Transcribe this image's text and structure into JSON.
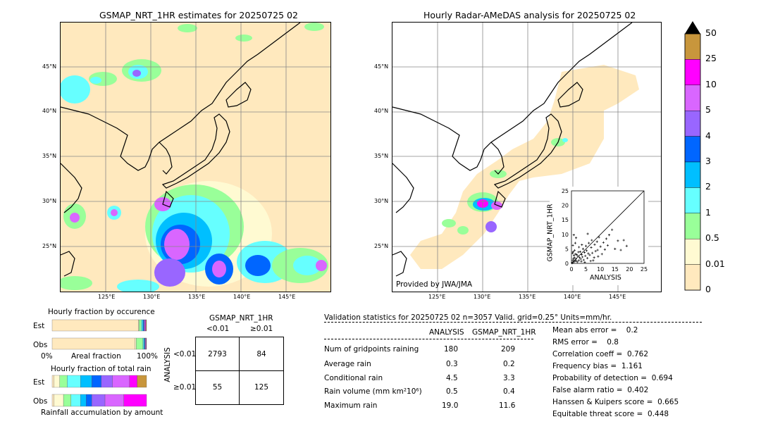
{
  "left_map": {
    "title": "GSMAP_NRT_1HR estimates for 20250725 02",
    "lat_labels": [
      "45°N",
      "40°N",
      "35°N",
      "30°N",
      "25°N"
    ],
    "lon_labels": [
      "125°E",
      "130°E",
      "135°E",
      "140°E",
      "145°E"
    ]
  },
  "right_map": {
    "title": "Hourly Radar-AMeDAS analysis for 20250725 02",
    "lat_labels": [
      "45°N",
      "40°N",
      "35°N",
      "30°N",
      "25°N"
    ],
    "lon_labels": [
      "125°E",
      "130°E",
      "135°E",
      "140°E",
      "145°E"
    ],
    "credit": "Provided by JWA/JMA"
  },
  "colorbar": {
    "labels": [
      "50",
      "25",
      "10",
      "5",
      "4",
      "3",
      "2",
      "1",
      "0.5",
      "0.01",
      "0"
    ],
    "colors": [
      "#c8963c",
      "#ff00ff",
      "#d966ff",
      "#9966ff",
      "#0066ff",
      "#00bfff",
      "#66ffff",
      "#99ff99",
      "#fffad2",
      "#ffe9be"
    ]
  },
  "chart_data": [
    {
      "type": "scatter",
      "xlabel": "ANALYSIS",
      "ylabel": "GSMAP_NRT_1HR",
      "xlim": [
        0,
        25
      ],
      "ylim": [
        0,
        25
      ],
      "xticks": [
        "0",
        "5",
        "10",
        "15",
        "20",
        "25"
      ],
      "yticks": [
        "0",
        "5",
        "10",
        "15",
        "20",
        "25"
      ],
      "points": [
        [
          0.3,
          0.2
        ],
        [
          0.5,
          1.0
        ],
        [
          0.8,
          0.5
        ],
        [
          1.0,
          2.0
        ],
        [
          1.2,
          0.8
        ],
        [
          1.5,
          1.5
        ],
        [
          1.8,
          3.0
        ],
        [
          2.0,
          0.5
        ],
        [
          2.2,
          2.5
        ],
        [
          2.5,
          1.0
        ],
        [
          0.4,
          3.5
        ],
        [
          0.6,
          4.0
        ],
        [
          1.1,
          4.5
        ],
        [
          0.9,
          2.8
        ],
        [
          1.4,
          3.2
        ],
        [
          2.8,
          2.0
        ],
        [
          3.0,
          4.0
        ],
        [
          3.2,
          1.5
        ],
        [
          3.5,
          3.0
        ],
        [
          3.8,
          2.2
        ],
        [
          4.0,
          5.0
        ],
        [
          4.2,
          1.2
        ],
        [
          4.5,
          3.8
        ],
        [
          4.8,
          2.6
        ],
        [
          5.0,
          6.0
        ],
        [
          5.2,
          4.4
        ],
        [
          5.5,
          1.8
        ],
        [
          5.8,
          3.4
        ],
        [
          6.0,
          7.0
        ],
        [
          6.3,
          2.9
        ],
        [
          6.8,
          5.5
        ],
        [
          7.0,
          8.0
        ],
        [
          7.2,
          3.6
        ],
        [
          7.5,
          1.0
        ],
        [
          8.0,
          6.5
        ],
        [
          8.3,
          4.2
        ],
        [
          8.8,
          7.5
        ],
        [
          9.2,
          2.4
        ],
        [
          9.5,
          9.0
        ],
        [
          10.0,
          5.8
        ],
        [
          10.5,
          3.2
        ],
        [
          11.0,
          7.2
        ],
        [
          11.5,
          4.8
        ],
        [
          12.0,
          8.5
        ],
        [
          12.5,
          6.2
        ],
        [
          13.0,
          9.8
        ],
        [
          14.0,
          11.6
        ],
        [
          15.0,
          5.0
        ],
        [
          16.0,
          7.8
        ],
        [
          17.0,
          4.6
        ],
        [
          18.0,
          8.0
        ],
        [
          19.0,
          6.0
        ],
        [
          0.2,
          0.1
        ],
        [
          0.7,
          1.6
        ],
        [
          1.6,
          0.9
        ],
        [
          2.4,
          3.9
        ],
        [
          3.4,
          0.7
        ],
        [
          4.6,
          0.4
        ],
        [
          0.5,
          6.2
        ],
        [
          1.3,
          7.0
        ],
        [
          2.6,
          5.6
        ],
        [
          3.6,
          6.4
        ],
        [
          0.8,
          9.8
        ],
        [
          1.6,
          8.8
        ],
        [
          5.6,
          10.2
        ],
        [
          6.6,
          0.8
        ],
        [
          7.8,
          2.0
        ],
        [
          9.0,
          4.6
        ]
      ]
    },
    {
      "type": "bar",
      "title": "Hourly fraction by occurence",
      "categories": [
        "Est",
        "Obs"
      ],
      "xlabel": "Areal fraction",
      "xtick_labels": [
        "0%",
        "100%"
      ],
      "series": [
        {
          "values": [
            0.914,
            0.88
          ]
        },
        {
          "values": [
            0.006,
            0.01
          ]
        },
        {
          "values": [
            0.024,
            0.07
          ]
        },
        {
          "values": [
            0.012,
            0.01
          ]
        },
        {
          "values": [
            0.01,
            0.008
          ]
        },
        {
          "values": [
            0.008,
            0.006
          ]
        },
        {
          "values": [
            0.006,
            0.004
          ]
        },
        {
          "values": [
            0.008,
            0.006
          ]
        },
        {
          "values": [
            0.006,
            0.004
          ]
        },
        {
          "values": [
            0.006,
            0.002
          ]
        }
      ]
    },
    {
      "type": "bar",
      "title": "Hourly fraction of total rain",
      "categories": [
        "Est",
        "Obs"
      ],
      "xlabel": "Rainfall accumulation by amount",
      "series": [
        {
          "values": [
            0.02,
            0.02
          ]
        },
        {
          "values": [
            0.06,
            0.1
          ]
        },
        {
          "values": [
            0.08,
            0.08
          ]
        },
        {
          "values": [
            0.14,
            0.1
          ]
        },
        {
          "values": [
            0.12,
            0.06
          ]
        },
        {
          "values": [
            0.1,
            0.06
          ]
        },
        {
          "values": [
            0.12,
            0.14
          ]
        },
        {
          "values": [
            0.18,
            0.2
          ]
        },
        {
          "values": [
            0.08,
            0.24
          ]
        },
        {
          "values": [
            0.1,
            0.0
          ]
        }
      ]
    },
    {
      "type": "table",
      "title": "GSMAP_NRT_1HR",
      "col_headers": [
        "<0.01",
        "≥0.01"
      ],
      "row_headers": [
        "<0.01",
        "≥0.01"
      ],
      "row_axis_label": "ANALYSIS",
      "cells": [
        [
          "2793",
          "84"
        ],
        [
          "55",
          "125"
        ]
      ]
    }
  ],
  "validation": {
    "header": "Validation statistics for 20250725 02  n=3057 Valid. grid=0.25° Units=mm/hr.",
    "col_analysis": "ANALYSIS",
    "col_gsmap": "GSMAP_NRT_1HR",
    "rows": [
      {
        "label": "Num of gridpoints raining",
        "analysis": "180",
        "gsmap": "209"
      },
      {
        "label": "Average rain",
        "analysis": "0.3",
        "gsmap": "0.2"
      },
      {
        "label": "Conditional rain",
        "analysis": "4.5",
        "gsmap": "3.3"
      },
      {
        "label": "Rain volume (mm km²10⁶)",
        "analysis": "0.5",
        "gsmap": "0.4"
      },
      {
        "label": "Maximum rain",
        "analysis": "19.0",
        "gsmap": "11.6"
      }
    ],
    "scores": [
      "Mean abs error =    0.2",
      "RMS error =    0.8",
      "Correlation coeff =  0.762",
      "Frequency bias =  1.161",
      "Probability of detection =  0.694",
      "False alarm ratio =  0.402",
      "Hanssen & Kuipers score =  0.665",
      "Equitable threat score =  0.448"
    ]
  }
}
